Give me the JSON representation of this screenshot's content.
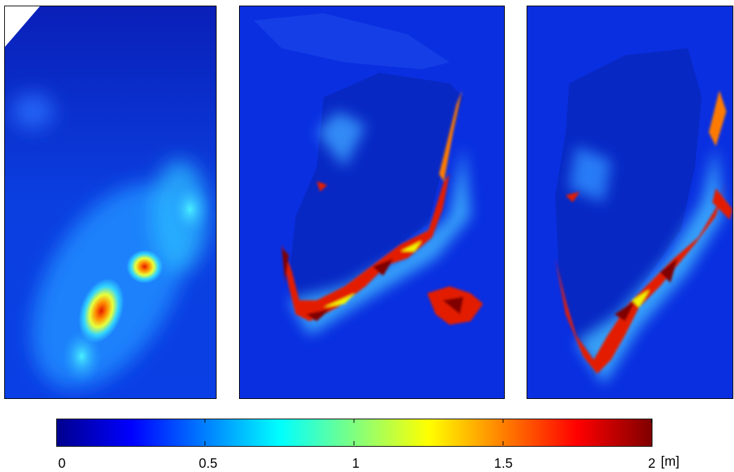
{
  "panels": [
    {
      "id": "coarse-field"
    },
    {
      "id": "greenland-medium"
    },
    {
      "id": "greenland-fine"
    }
  ],
  "colorbar": {
    "min": 0,
    "max": 2,
    "colormap": "jet",
    "ticks": [
      "0",
      "0.5",
      "1",
      "1.5",
      "2"
    ],
    "unit": "[m]"
  },
  "colors": {
    "background": "#0a2fd4",
    "dark": "#00008f",
    "cyan": "#33d6ff",
    "yellow": "#f2f400",
    "red": "#e31a00",
    "darkred": "#800000"
  }
}
